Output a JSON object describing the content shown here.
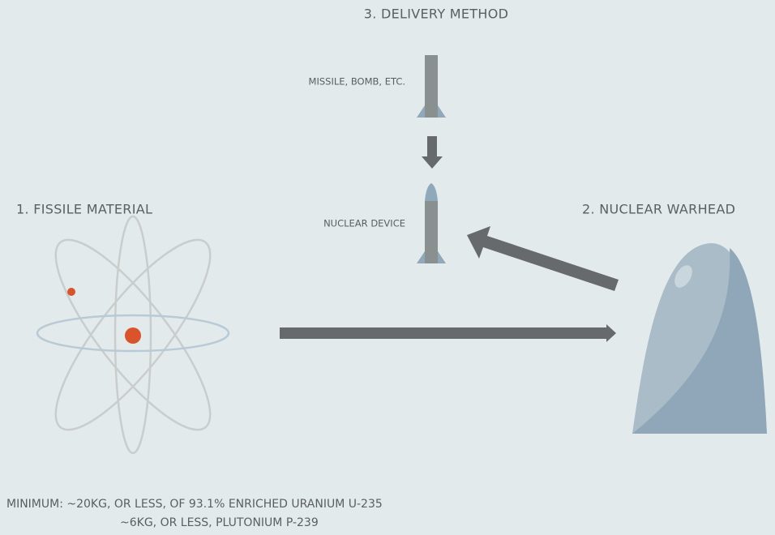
{
  "delivery": {
    "title": "3. DELIVERY METHOD",
    "missile_label": "MISSILE, BOMB, ETC.",
    "device_label": "NUCLEAR DEVICE"
  },
  "fissile": {
    "title": "1. FISSILE MATERIAL"
  },
  "warhead": {
    "title": "2. NUCLEAR WARHEAD"
  },
  "footnote": {
    "lines": [
      "MINIMUM: ~20KG, OR LESS, OF 93.1% ENRICHED URANIUM U-235",
      "~6KG, OR LESS, PLUTONIUM P-239"
    ]
  }
}
